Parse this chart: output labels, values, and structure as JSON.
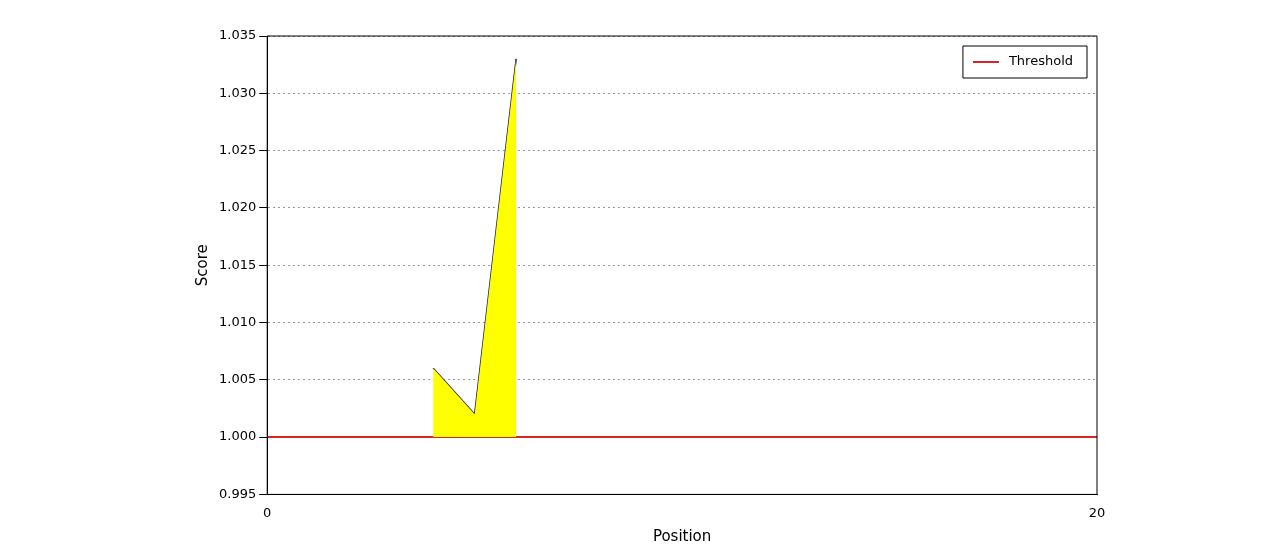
{
  "chart_data": {
    "type": "area",
    "xlabel": "Position",
    "ylabel": "Score",
    "x": [
      4,
      5,
      6
    ],
    "series": [
      {
        "type": "area",
        "color": "#ffff00",
        "values": [
          1.006,
          1.002,
          1.033
        ]
      },
      {
        "type": "line",
        "color": "#1c1c5c",
        "values": [
          1.006,
          1.002,
          1.033
        ]
      }
    ],
    "xlim": [
      0,
      20
    ],
    "xticks": [
      0,
      20
    ],
    "ylim": [
      0.995,
      1.035
    ],
    "yticks": [
      {
        "value": 0.995,
        "label": "0.995"
      },
      {
        "value": 1.0,
        "label": "1.000"
      },
      {
        "value": 1.005,
        "label": "1.005"
      },
      {
        "value": 1.01,
        "label": "1.010"
      },
      {
        "value": 1.015,
        "label": "1.015"
      },
      {
        "value": 1.02,
        "label": "1.020"
      },
      {
        "value": 1.025,
        "label": "1.025"
      },
      {
        "value": 1.03,
        "label": "1.030"
      },
      {
        "value": 1.035,
        "label": "1.035"
      }
    ],
    "ref_lines": [
      {
        "axis": "y",
        "value": 1.0,
        "label": "Threshold",
        "color": "#d62728"
      }
    ],
    "grid": "y",
    "legend": "top right",
    "marker": "none",
    "line_style": "solid"
  }
}
